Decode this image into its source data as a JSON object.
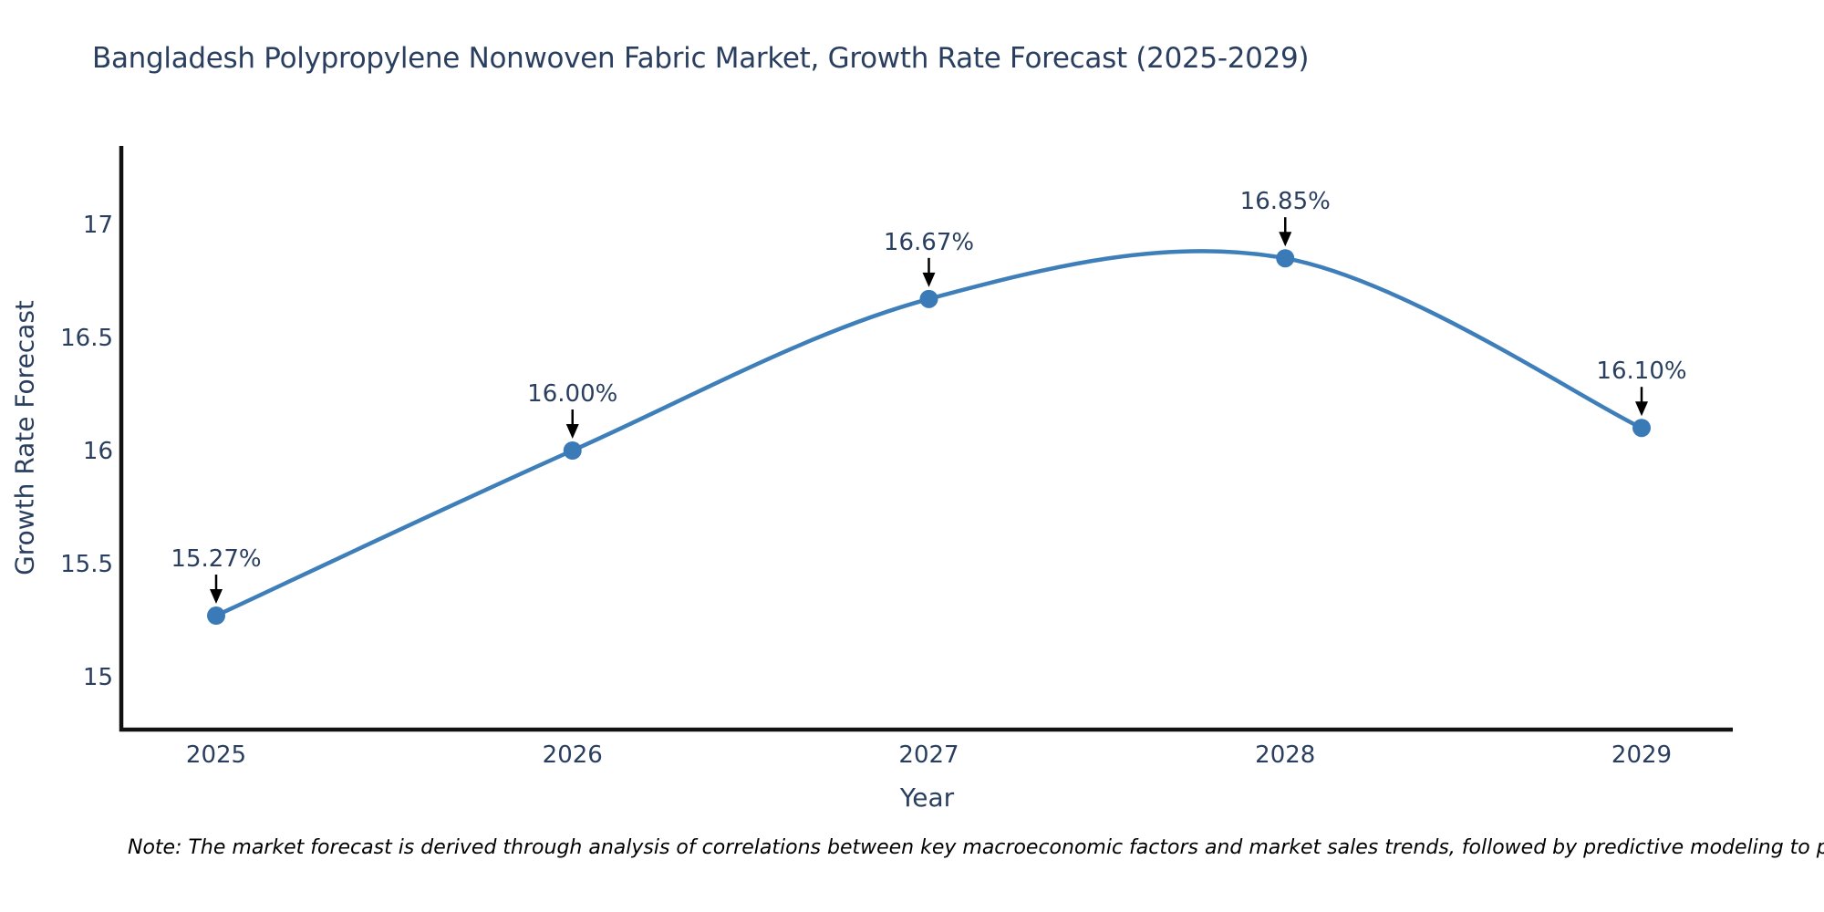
{
  "footnote": {
    "text": "Note: The market forecast is derived through analysis of correlations between key macroeconomic factors and market sales trends, followed by predictive modeling to project future sal"
  },
  "chart_data": {
    "type": "line",
    "title": "Bangladesh Polypropylene Nonwoven Fabric Market, Growth Rate Forecast (2025-2029)",
    "xlabel": "Year",
    "ylabel": "Growth Rate Forecast",
    "categories": [
      "2025",
      "2026",
      "2027",
      "2028",
      "2029"
    ],
    "series": [
      {
        "name": "Growth Rate Forecast",
        "values": [
          15.27,
          16.0,
          16.67,
          16.85,
          16.1
        ]
      }
    ],
    "point_labels": [
      "15.27%",
      "16.00%",
      "16.67%",
      "16.85%",
      "16.10%"
    ],
    "yticks": [
      15,
      15.5,
      16,
      16.5,
      17
    ],
    "ylim": [
      14.77,
      17.35
    ],
    "line_shape": "spline",
    "grid": false,
    "legend": "none",
    "markers": true,
    "annotations_have_arrows": true,
    "colors": {
      "line": "#3e7fba",
      "marker": "#3a7ab6",
      "axis": "#111111",
      "text": "#2a3f5f",
      "arrow": "#000000",
      "note": "#000000"
    }
  }
}
